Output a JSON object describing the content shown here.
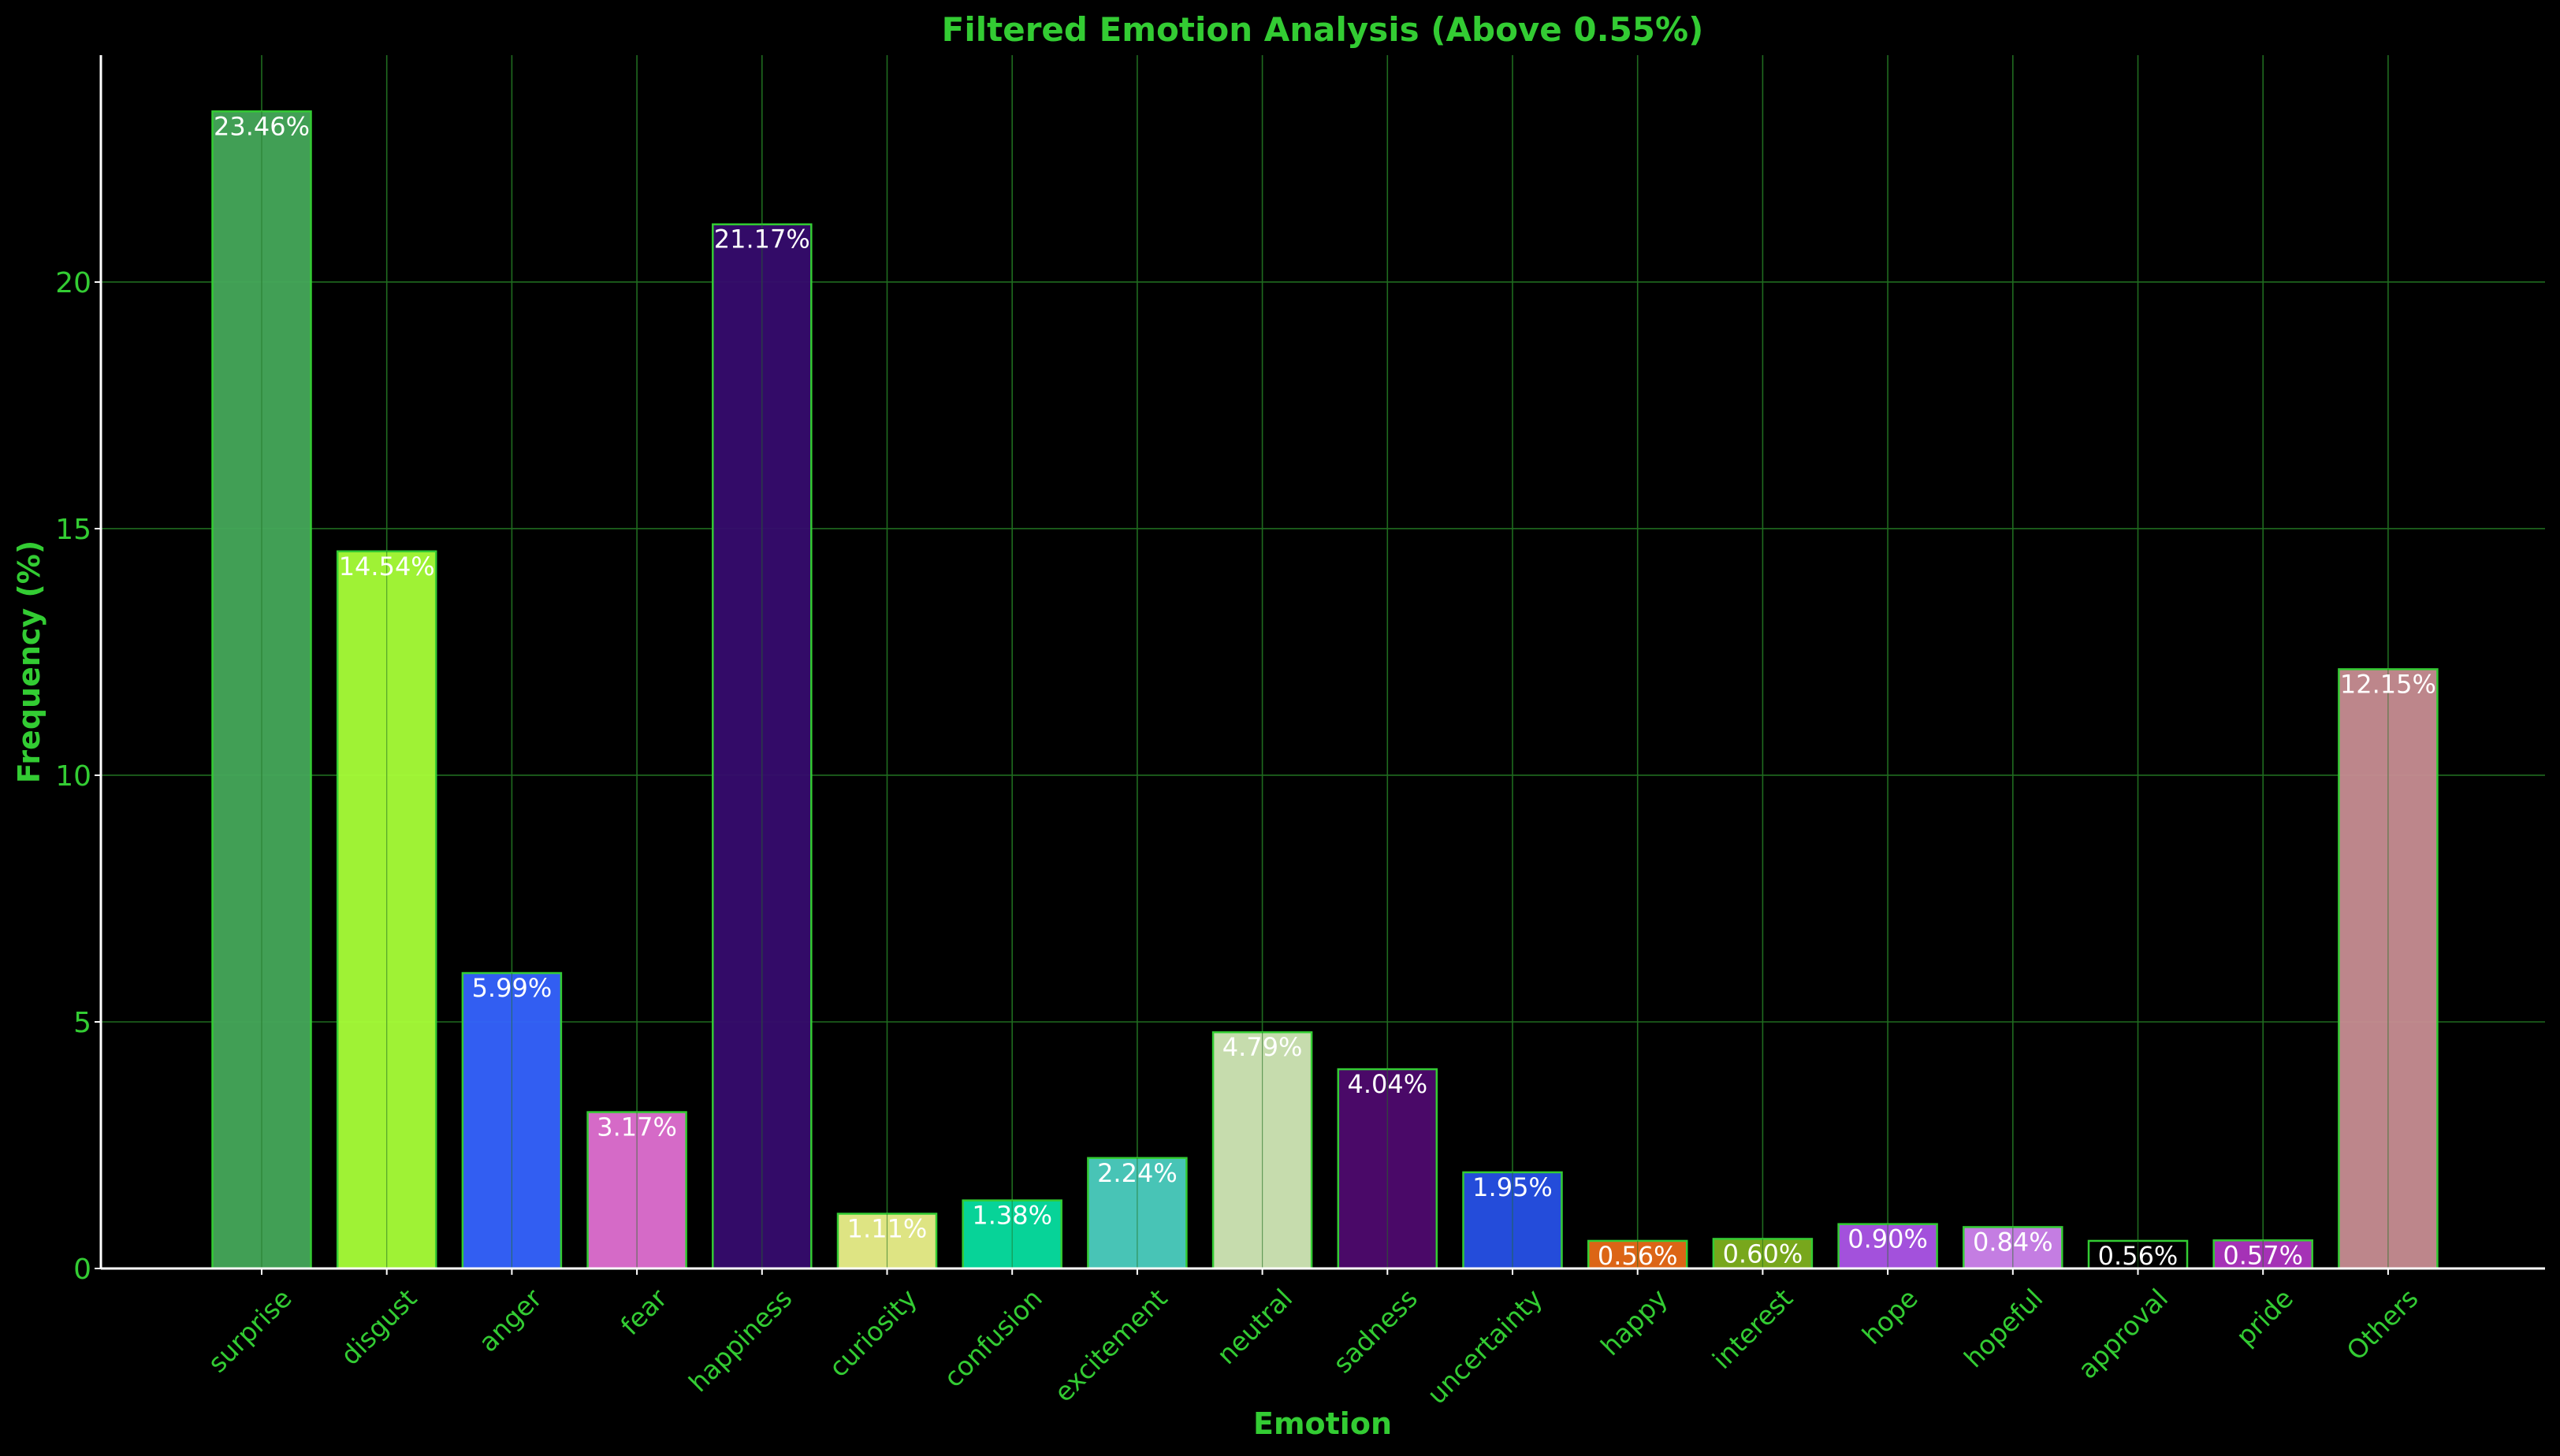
{
  "chart_data": {
    "type": "bar",
    "title": "Filtered Emotion Analysis (Above 0.55%)",
    "xlabel": "Emotion",
    "ylabel": "Frequency (%)",
    "ylim": [
      0,
      24.6
    ],
    "yticks": [
      0,
      5,
      10,
      15,
      20
    ],
    "grid": true,
    "categories": [
      "surprise",
      "disgust",
      "anger",
      "fear",
      "happiness",
      "curiosity",
      "confusion",
      "excitement",
      "neutral",
      "sadness",
      "uncertainty",
      "happy",
      "interest",
      "hope",
      "hopeful",
      "approval",
      "pride",
      "Others"
    ],
    "values": [
      23.46,
      14.54,
      5.99,
      3.17,
      21.17,
      1.11,
      1.38,
      2.24,
      4.79,
      4.04,
      1.95,
      0.56,
      0.6,
      0.9,
      0.84,
      0.56,
      0.57,
      12.15
    ],
    "data_labels": [
      "23.46%",
      "14.54%",
      "5.99%",
      "3.17%",
      "21.17%",
      "1.11%",
      "1.38%",
      "2.24%",
      "4.79%",
      "4.04%",
      "1.95%",
      "0.56%",
      "0.60%",
      "0.90%",
      "0.84%",
      "0.56%",
      "0.57%",
      "12.15%"
    ],
    "colors": [
      "#44a85a",
      "#a8ff38",
      "#3563ff",
      "#e070d2",
      "#360c6e",
      "#eaf08a",
      "#07dea0",
      "#4ccfc0",
      "#d1e8b6",
      "#4e0a6e",
      "#2650e6",
      "#e86a17",
      "#7eb01e",
      "#ac55e8",
      "#cf84ee",
      "#000000",
      "#ae35c0",
      "#c78d92"
    ],
    "text_color": "#33cc33",
    "background": "#000000"
  }
}
